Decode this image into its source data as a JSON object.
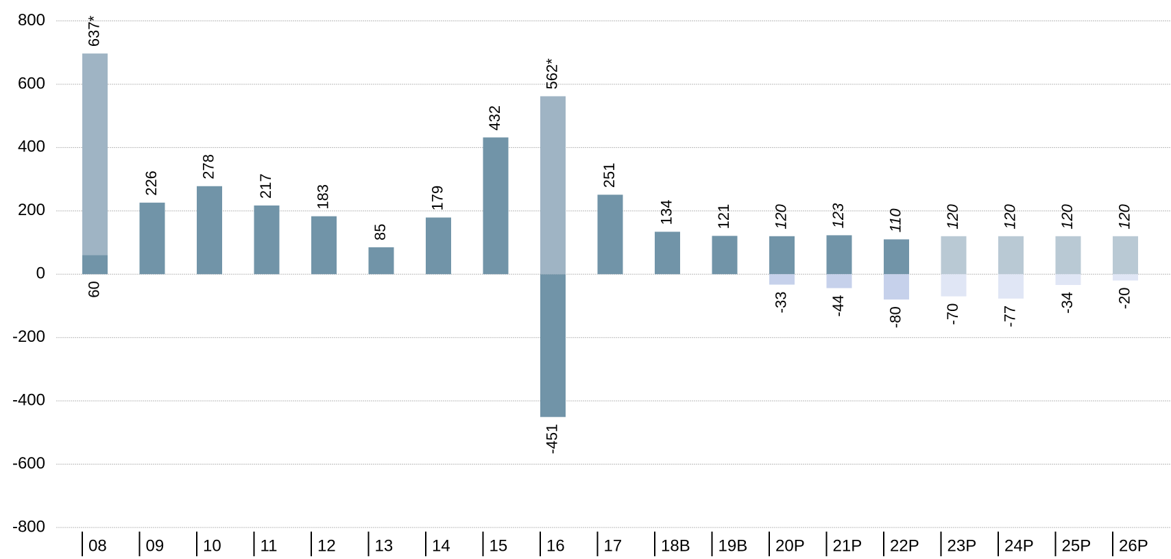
{
  "chart_data": {
    "type": "bar",
    "stacked": true,
    "grid": true,
    "categories": [
      "08",
      "09",
      "10",
      "11",
      "12",
      "13",
      "14",
      "15",
      "16",
      "17",
      "18B",
      "19B",
      "20P",
      "21P",
      "22P",
      "23P",
      "24P",
      "25P",
      "26P"
    ],
    "ylim": [
      -800,
      800
    ],
    "yticks": [
      -800,
      -600,
      -400,
      -200,
      0,
      200,
      400,
      600,
      800
    ],
    "series": [
      {
        "color": "#7194a8",
        "values": [
          60,
          226,
          278,
          217,
          183,
          85,
          179,
          432,
          -451,
          251,
          134,
          121,
          null,
          null,
          null,
          null,
          null,
          null,
          null
        ]
      },
      {
        "color": "#9fb4c4",
        "values": [
          637,
          null,
          null,
          null,
          null,
          null,
          null,
          null,
          562,
          null,
          null,
          null,
          null,
          null,
          null,
          null,
          null,
          null,
          null
        ],
        "value_labels": [
          "637*",
          null,
          null,
          null,
          null,
          null,
          null,
          null,
          "562*",
          null,
          null,
          null,
          null,
          null,
          null,
          null,
          null,
          null,
          null
        ]
      },
      {
        "color": "#7194a8",
        "label_style": "italic",
        "values": [
          null,
          null,
          null,
          null,
          null,
          null,
          null,
          null,
          null,
          null,
          null,
          null,
          120,
          123,
          110,
          null,
          null,
          null,
          null
        ]
      },
      {
        "color": "#b9c9d4",
        "label_style": "italic",
        "values": [
          null,
          null,
          null,
          null,
          null,
          null,
          null,
          null,
          null,
          null,
          null,
          null,
          null,
          null,
          null,
          120,
          120,
          120,
          120
        ]
      },
      {
        "color": "#c6d1eb",
        "values": [
          null,
          null,
          null,
          null,
          null,
          null,
          null,
          null,
          null,
          null,
          null,
          null,
          -33,
          -44,
          -80,
          null,
          null,
          null,
          null
        ]
      },
      {
        "color": "#e0e6f5",
        "values": [
          null,
          null,
          null,
          null,
          null,
          null,
          null,
          null,
          null,
          null,
          null,
          null,
          null,
          null,
          null,
          -70,
          -77,
          -34,
          -20
        ]
      }
    ]
  }
}
